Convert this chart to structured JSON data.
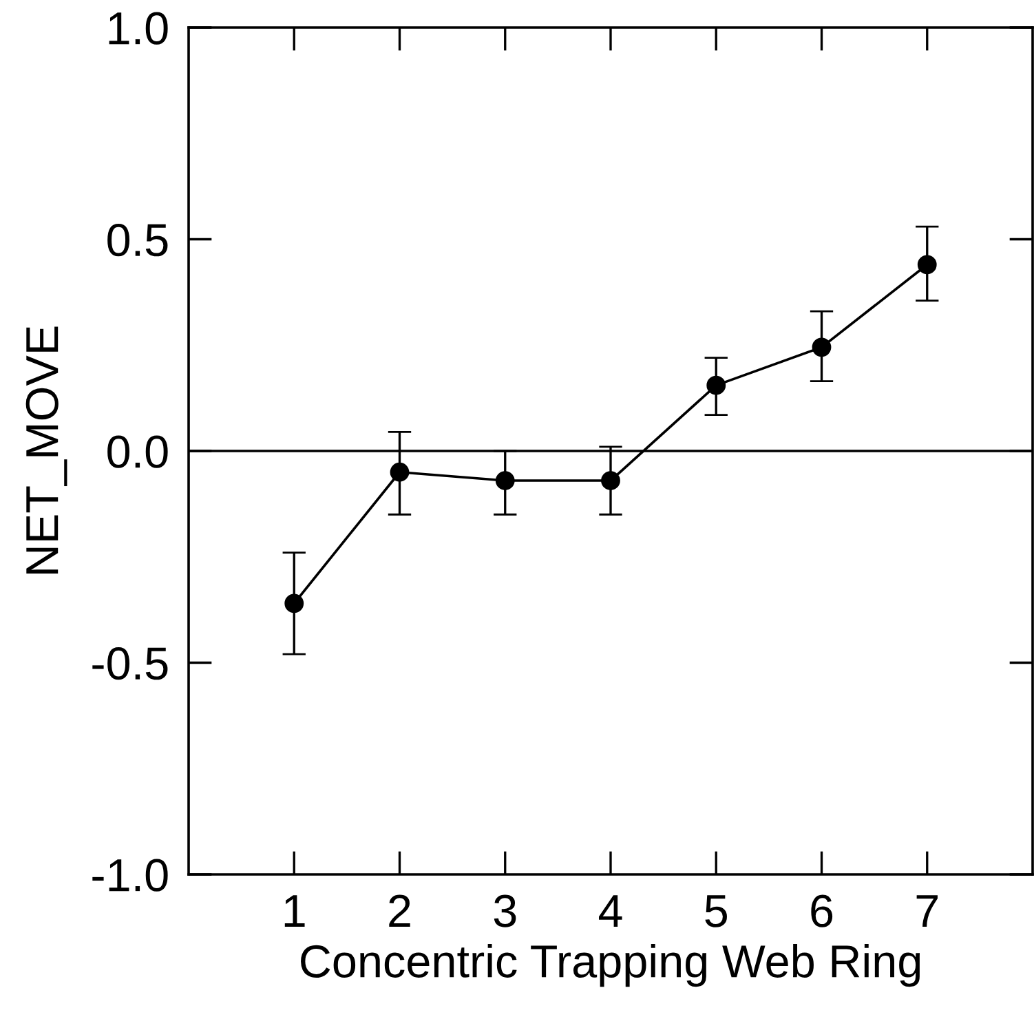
{
  "chart_data": {
    "type": "line",
    "xlabel": "Concentric Trapping Web Ring",
    "ylabel": "NET_MOVE",
    "x": [
      1,
      2,
      3,
      4,
      5,
      6,
      7
    ],
    "values": [
      -0.36,
      -0.05,
      -0.07,
      -0.07,
      0.155,
      0.245,
      0.44
    ],
    "errors": [
      [
        -0.48,
        -0.24
      ],
      [
        -0.15,
        0.045
      ],
      [
        -0.15,
        0.0
      ],
      [
        -0.15,
        0.01
      ],
      [
        0.085,
        0.22
      ],
      [
        0.165,
        0.33
      ],
      [
        0.355,
        0.53
      ]
    ],
    "color": "#000000",
    "marker": "circle",
    "line_style": "solid",
    "grid": false,
    "legend": false,
    "xlim": [
      0,
      8
    ],
    "xticks": [
      1,
      2,
      3,
      4,
      5,
      6,
      7
    ],
    "ylim": [
      -1.0,
      1.0
    ],
    "yticks": [
      {
        "value": -1.0,
        "label": "-1.0"
      },
      {
        "value": -0.5,
        "label": "-0.5"
      },
      {
        "value": 0.0,
        "label": "0.0"
      },
      {
        "value": 0.5,
        "label": "0.5"
      },
      {
        "value": 1.0,
        "label": "1.0"
      }
    ],
    "ref_lines": [
      {
        "axis": "y",
        "value": 0,
        "color": "#000000",
        "line_style": "solid"
      }
    ]
  }
}
